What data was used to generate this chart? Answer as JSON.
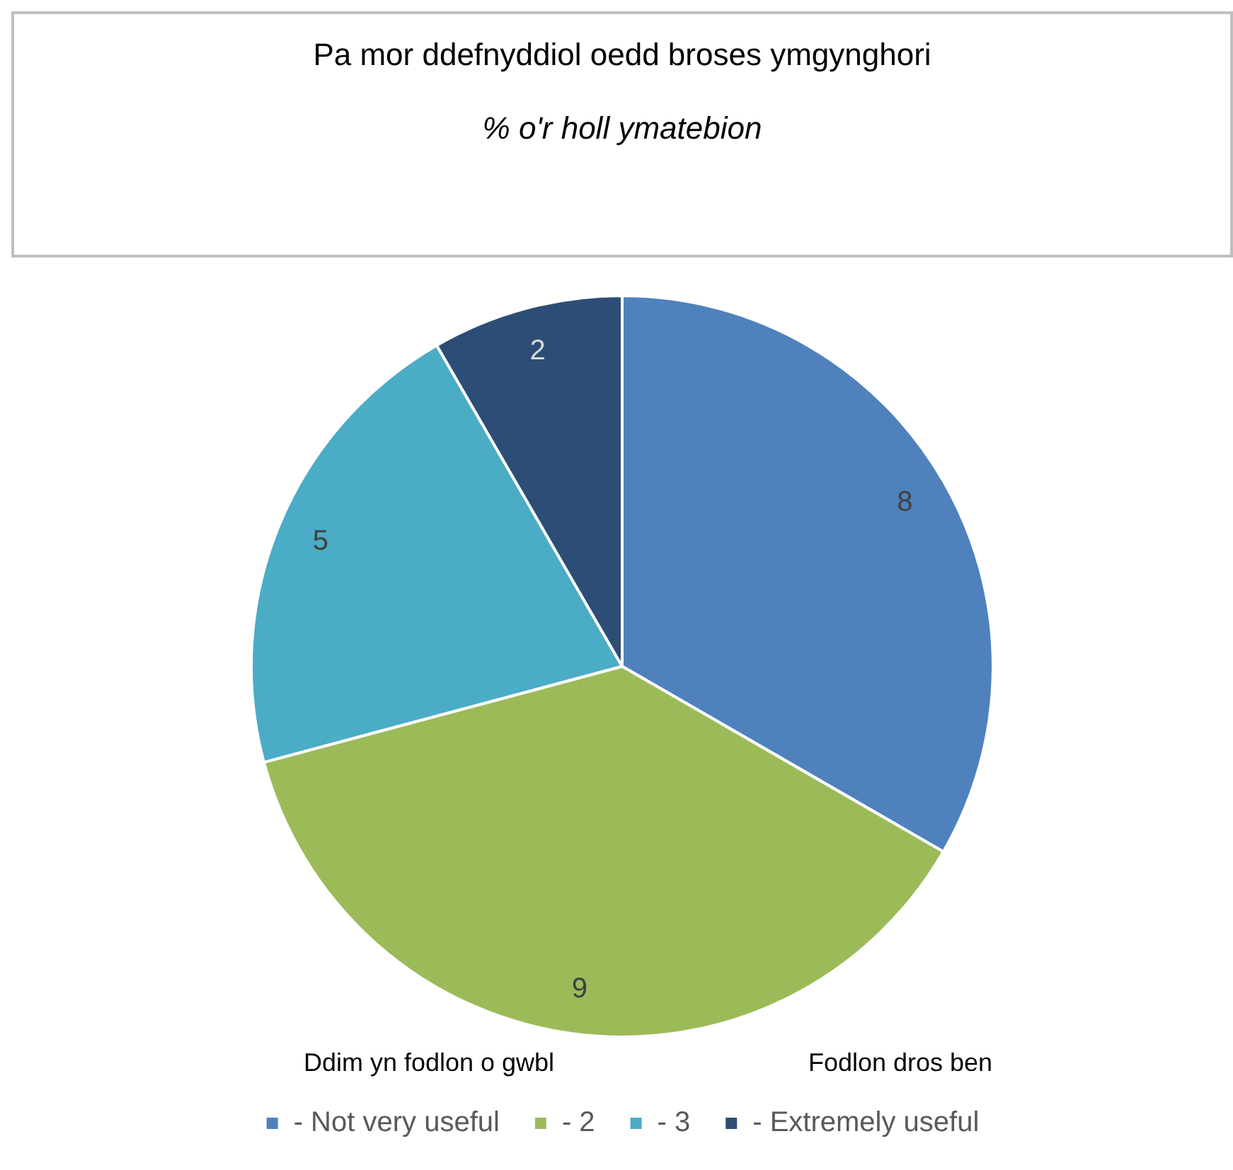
{
  "chart_data": {
    "type": "pie",
    "title": "Pa mor ddefnyddiol oedd broses ymgynghori",
    "subtitle": "% o'r holl ymatebion",
    "categories": [
      "- Not very useful",
      "- 2",
      "- 3",
      "- Extremely useful"
    ],
    "values": [
      8,
      9,
      5,
      2
    ],
    "colors": [
      "#4f81bd",
      "#9bbb59",
      "#4bacc6",
      "#2c4d75"
    ],
    "data_labels": true,
    "legend": "bottom",
    "annotations": [
      "Ddim yn fodlon o gwbl",
      "Fodlon dros ben"
    ]
  }
}
